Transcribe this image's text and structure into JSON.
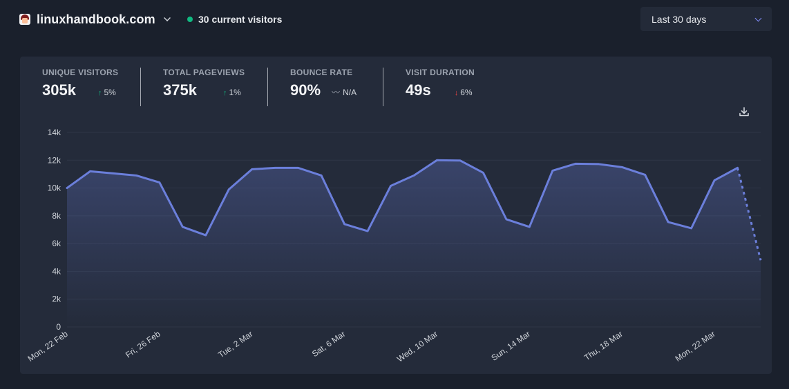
{
  "header": {
    "site_name": "linuxhandbook.com",
    "current_visitors": "30 current visitors",
    "date_range": "Last 30 days"
  },
  "stats": [
    {
      "label": "UNIQUE VISITORS",
      "value": "305k",
      "change": "5%",
      "direction": "up"
    },
    {
      "label": "TOTAL PAGEVIEWS",
      "value": "375k",
      "change": "1%",
      "direction": "up"
    },
    {
      "label": "BOUNCE RATE",
      "value": "90%",
      "change": "N/A",
      "direction": "flat"
    },
    {
      "label": "VISIT DURATION",
      "value": "49s",
      "change": "6%",
      "direction": "down"
    }
  ],
  "colors": {
    "line": "#6b7fdb",
    "positive": "#10b981",
    "negative": "#ef4444",
    "live_dot": "#10b981"
  },
  "chart_data": {
    "type": "line",
    "y_ticks": [
      "0",
      "2k",
      "4k",
      "6k",
      "8k",
      "10k",
      "12k",
      "14k"
    ],
    "ylim": [
      0,
      14000
    ],
    "x_tick_labels": [
      "Mon, 22 Feb",
      "Fri, 26 Feb",
      "Tue, 2 Mar",
      "Sat, 6 Mar",
      "Wed, 10 Mar",
      "Sun, 14 Mar",
      "Thu, 18 Mar",
      "Mon, 22 Mar"
    ],
    "x_tick_indices": [
      0,
      4,
      8,
      12,
      16,
      20,
      24,
      28
    ],
    "series": [
      {
        "values": [
          10000,
          11200,
          11050,
          10900,
          10400,
          7200,
          6600,
          9900,
          11350,
          11450,
          11450,
          10900,
          7400,
          6900,
          10150,
          10900,
          12000,
          11980,
          11100,
          7750,
          7200,
          11250,
          11750,
          11720,
          11500,
          10950,
          7550,
          7100,
          10550,
          11450,
          4800
        ],
        "partial_from_index": 29
      }
    ],
    "grid": true,
    "legend": "none"
  }
}
